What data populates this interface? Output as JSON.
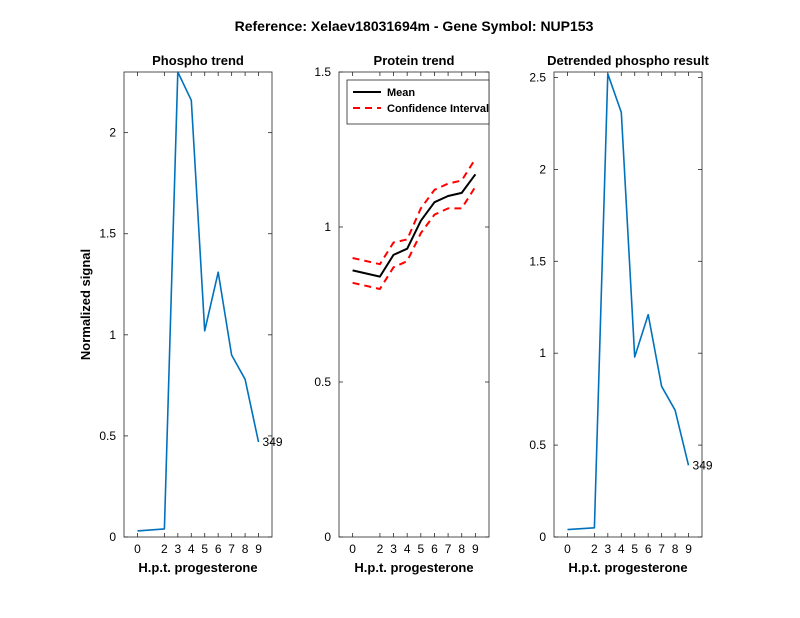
{
  "figure": {
    "title": "Reference:  Xelaev18031694m - Gene Symbol:  NUP153"
  },
  "chart_data": [
    {
      "type": "line",
      "title": "Phospho trend",
      "xlabel": "H.p.t. progesterone",
      "ylabel": "Normalized signal",
      "categories": [
        "0",
        "2",
        "3",
        "4",
        "5",
        "6",
        "7",
        "8",
        "9"
      ],
      "xlim": [
        -1,
        10
      ],
      "ylim": [
        0,
        2.3
      ],
      "yticks": [
        0,
        0.5,
        1,
        1.5,
        2
      ],
      "ytick_labels": [
        "0",
        "0.5",
        "1",
        "1.5",
        "2"
      ],
      "series": [
        {
          "values": [
            0.03,
            0.04,
            2.3,
            2.16,
            1.02,
            1.31,
            0.9,
            0.78,
            0.47
          ],
          "color": "#0072BD"
        }
      ],
      "annotation": {
        "text": "349",
        "at_index": 8
      }
    },
    {
      "type": "line",
      "title": "Protein trend",
      "xlabel": "H.p.t. progesterone",
      "ylabel": "",
      "categories": [
        "0",
        "2",
        "3",
        "4",
        "5",
        "6",
        "7",
        "8",
        "9"
      ],
      "xlim": [
        -1,
        10
      ],
      "ylim": [
        0,
        1.5
      ],
      "yticks": [
        0,
        0.5,
        1,
        1.5
      ],
      "ytick_labels": [
        "0",
        "0.5",
        "1",
        "1.5"
      ],
      "legend": {
        "position": "top-left"
      },
      "series": [
        {
          "name": "Mean",
          "values": [
            0.86,
            0.84,
            0.91,
            0.93,
            1.02,
            1.08,
            1.1,
            1.11,
            1.17
          ],
          "color": "#000000",
          "style": "solid"
        },
        {
          "name": "Confidence Interval",
          "values": [
            0.9,
            0.88,
            0.95,
            0.96,
            1.06,
            1.12,
            1.14,
            1.15,
            1.22
          ],
          "color": "#FF0000",
          "style": "dashed"
        },
        {
          "values": [
            0.82,
            0.8,
            0.87,
            0.89,
            0.98,
            1.04,
            1.06,
            1.06,
            1.13
          ],
          "color": "#FF0000",
          "style": "dashed"
        }
      ]
    },
    {
      "type": "line",
      "title": "Detrended phospho result",
      "xlabel": "H.p.t. progesterone",
      "ylabel": "",
      "categories": [
        "0",
        "2",
        "3",
        "4",
        "5",
        "6",
        "7",
        "8",
        "9"
      ],
      "xlim": [
        -1,
        10
      ],
      "ylim": [
        0,
        2.53
      ],
      "yticks": [
        0,
        0.5,
        1,
        1.5,
        2,
        2.5
      ],
      "ytick_labels": [
        "0",
        "0.5",
        "1",
        "1.5",
        "2",
        "2.5"
      ],
      "series": [
        {
          "values": [
            0.04,
            0.05,
            2.52,
            2.31,
            0.98,
            1.21,
            0.82,
            0.69,
            0.39
          ],
          "color": "#0072BD"
        }
      ],
      "annotation": {
        "text": "349",
        "at_index": 8
      }
    }
  ]
}
